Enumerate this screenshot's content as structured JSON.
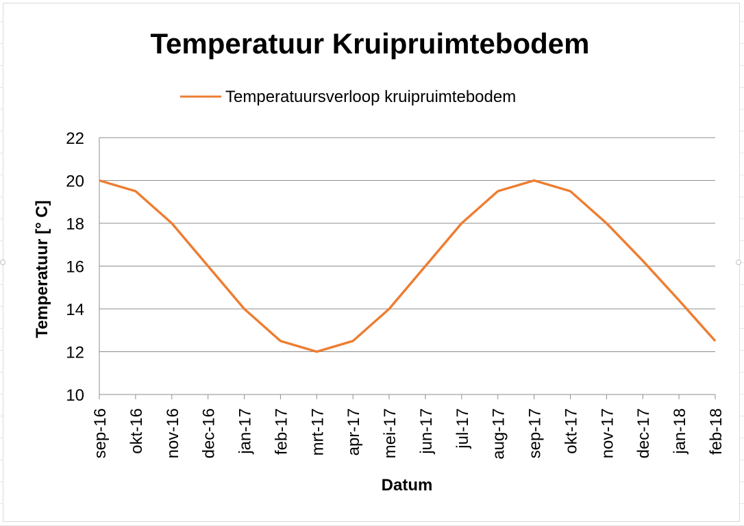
{
  "chart_data": {
    "type": "line",
    "title": "Temperatuur Kruipruimtebodem",
    "xlabel": "Datum",
    "ylabel": "Temperatuur [° C]",
    "ylim": [
      10,
      22
    ],
    "yticks": [
      10,
      12,
      14,
      16,
      18,
      20,
      22
    ],
    "grid": true,
    "legend_position": "top",
    "categories": [
      "sep-16",
      "okt-16",
      "nov-16",
      "dec-16",
      "jan-17",
      "feb-17",
      "mrt-17",
      "apr-17",
      "mei-17",
      "jun-17",
      "jul-17",
      "aug-17",
      "sep-17",
      "okt-17",
      "nov-17",
      "dec-17",
      "jan-18",
      "feb-18"
    ],
    "series": [
      {
        "name": "Temperatuursverloop kruipruimtebodem",
        "color": "#ED7D31",
        "values": [
          20,
          19.5,
          18,
          16,
          14,
          12.5,
          12,
          12.5,
          14,
          16,
          18,
          19.5,
          20,
          19.5,
          18,
          16.25,
          14.4,
          12.5
        ]
      }
    ]
  }
}
